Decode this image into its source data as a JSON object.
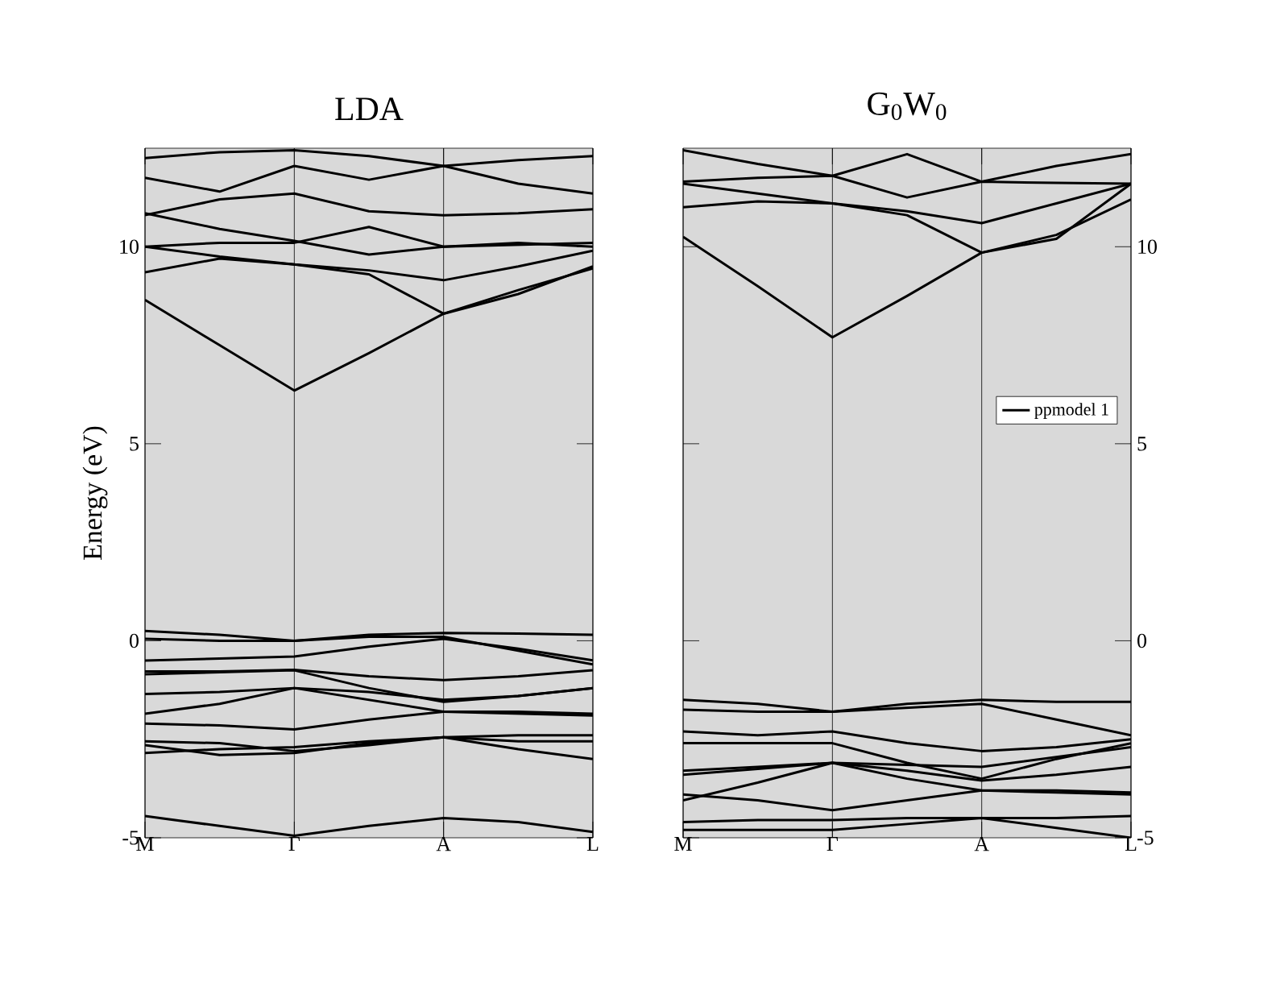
{
  "chart_data": [
    {
      "type": "line",
      "title": "LDA",
      "ylabel": "Energy (eV)",
      "categories": [
        "M",
        null,
        "Γ",
        null,
        "A",
        null,
        "L"
      ],
      "ylim": [
        -5,
        12.5
      ],
      "yticks": [
        -5,
        0,
        5,
        10
      ],
      "marker": "none",
      "line_style": "solid",
      "grid": "x",
      "series": [
        {
          "color": "#000000",
          "values": [
            8.65,
            7.5,
            6.35,
            7.3,
            8.3,
            8.8,
            9.5
          ]
        },
        {
          "color": "#000000",
          "values": [
            9.35,
            9.7,
            9.55,
            9.3,
            8.3,
            8.9,
            9.45
          ]
        },
        {
          "color": "#000000",
          "values": [
            10.0,
            9.75,
            9.55,
            9.4,
            9.15,
            9.5,
            9.9
          ]
        },
        {
          "color": "#000000",
          "values": [
            10.0,
            10.1,
            10.1,
            10.5,
            10.0,
            10.1,
            10.0
          ]
        },
        {
          "color": "#000000",
          "values": [
            10.85,
            10.45,
            10.15,
            9.8,
            10.0,
            10.05,
            10.1
          ]
        },
        {
          "color": "#000000",
          "values": [
            10.8,
            11.2,
            11.35,
            10.9,
            10.8,
            10.85,
            10.95
          ]
        },
        {
          "color": "#000000",
          "values": [
            11.75,
            11.4,
            12.05,
            11.7,
            12.05,
            11.6,
            11.35
          ]
        },
        {
          "color": "#000000",
          "values": [
            12.25,
            12.4,
            12.45,
            12.3,
            12.05,
            12.2,
            12.3
          ]
        },
        {
          "color": "#000000",
          "values": [
            0.25,
            0.15,
            0.0,
            0.15,
            0.2,
            0.18,
            0.15
          ]
        },
        {
          "color": "#000000",
          "values": [
            0.05,
            0.0,
            0.0,
            0.1,
            0.1,
            -0.25,
            -0.6
          ]
        },
        {
          "color": "#000000",
          "values": [
            -0.5,
            -0.45,
            -0.4,
            -0.15,
            0.05,
            -0.2,
            -0.5
          ]
        },
        {
          "color": "#000000",
          "values": [
            -0.78,
            -0.78,
            -0.74,
            -0.9,
            -1.0,
            -0.9,
            -0.75
          ]
        },
        {
          "color": "#000000",
          "values": [
            -0.85,
            -0.8,
            -0.75,
            -1.2,
            -1.55,
            -1.4,
            -1.2
          ]
        },
        {
          "color": "#000000",
          "values": [
            -1.35,
            -1.3,
            -1.2,
            -1.5,
            -1.8,
            -1.85,
            -1.9
          ]
        },
        {
          "color": "#000000",
          "values": [
            -1.85,
            -1.6,
            -1.2,
            -1.3,
            -1.5,
            -1.4,
            -1.2
          ]
        },
        {
          "color": "#000000",
          "values": [
            -2.1,
            -2.15,
            -2.25,
            -2.0,
            -1.8,
            -1.8,
            -1.85
          ]
        },
        {
          "color": "#000000",
          "values": [
            -4.45,
            -4.7,
            -4.95,
            -4.7,
            -4.5,
            -4.6,
            -4.85
          ]
        },
        {
          "color": "#000000",
          "values": [
            -2.55,
            -2.6,
            -2.8,
            -2.65,
            -2.45,
            -2.75,
            -3.0
          ]
        },
        {
          "color": "#000000",
          "values": [
            -2.85,
            -2.75,
            -2.7,
            -2.55,
            -2.45,
            -2.4,
            -2.4
          ]
        },
        {
          "color": "#000000",
          "values": [
            -2.65,
            -2.9,
            -2.85,
            -2.6,
            -2.45,
            -2.55,
            -2.55
          ]
        }
      ]
    },
    {
      "type": "line",
      "title": "G$_{0}$W$_{0}$",
      "categories": [
        "M",
        null,
        "Γ",
        null,
        "A",
        null,
        "L"
      ],
      "ylim": [
        -5,
        12.5
      ],
      "yticks": [
        -5,
        0,
        5,
        10
      ],
      "marker": "none",
      "line_style": "solid",
      "grid": "x",
      "legend": "right",
      "series": [
        {
          "name": "ppmodel 1",
          "color": "#000000",
          "values": [
            10.25,
            9.0,
            7.7,
            8.75,
            9.85,
            10.3,
            11.2
          ]
        },
        {
          "color": "#000000",
          "values": [
            11.0,
            11.15,
            11.1,
            10.8,
            9.85,
            10.2,
            11.6
          ]
        },
        {
          "color": "#000000",
          "values": [
            11.6,
            11.35,
            11.1,
            10.9,
            10.6,
            11.1,
            11.6
          ]
        },
        {
          "color": "#000000",
          "values": [
            11.65,
            11.75,
            11.8,
            11.25,
            11.65,
            11.62,
            11.6
          ]
        },
        {
          "color": "#000000",
          "values": [
            12.45,
            12.1,
            11.8,
            12.35,
            11.65,
            12.05,
            12.35
          ]
        },
        {
          "color": "#000000",
          "values": [
            -1.5,
            -1.6,
            -1.8,
            -1.6,
            -1.5,
            -1.55,
            -1.55
          ]
        },
        {
          "color": "#000000",
          "values": [
            -1.75,
            -1.8,
            -1.8,
            -1.7,
            -1.6,
            -2.0,
            -2.4
          ]
        },
        {
          "color": "#000000",
          "values": [
            -2.3,
            -2.4,
            -2.3,
            -2.6,
            -2.8,
            -2.7,
            -2.5
          ]
        },
        {
          "color": "#000000",
          "values": [
            -2.6,
            -2.6,
            -2.6,
            -3.1,
            -3.5,
            -3.0,
            -2.6
          ]
        },
        {
          "color": "#000000",
          "values": [
            -3.4,
            -3.25,
            -3.1,
            -3.15,
            -3.2,
            -2.95,
            -2.7
          ]
        },
        {
          "color": "#000000",
          "values": [
            -3.3,
            -3.2,
            -3.1,
            -3.3,
            -3.55,
            -3.4,
            -3.2
          ]
        },
        {
          "color": "#000000",
          "values": [
            -3.9,
            -4.05,
            -4.3,
            -4.05,
            -3.8,
            -3.8,
            -3.85
          ]
        },
        {
          "color": "#000000",
          "values": [
            -4.05,
            -3.6,
            -3.1,
            -3.5,
            -3.8,
            -3.85,
            -3.9
          ]
        },
        {
          "color": "#000000",
          "values": [
            -4.6,
            -4.55,
            -4.55,
            -4.5,
            -4.5,
            -4.5,
            -4.45
          ]
        },
        {
          "color": "#000000",
          "values": [
            -4.8,
            -4.8,
            -4.8,
            -4.65,
            -4.5,
            -4.75,
            -5.0
          ]
        }
      ]
    }
  ]
}
